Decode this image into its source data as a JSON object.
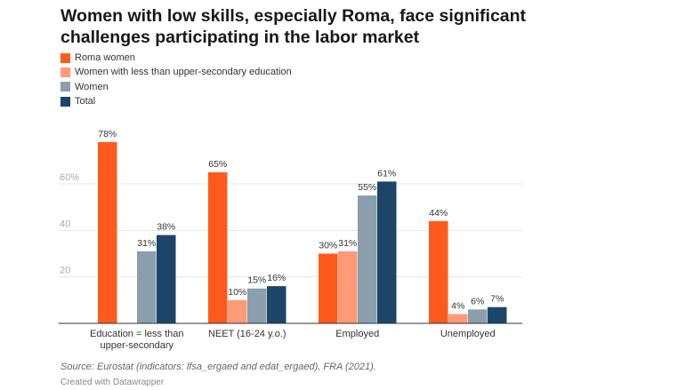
{
  "title": "Women with low skills, especially Roma, face significant challenges participating in the labor market",
  "source": "Source: Eurostat (indicators: lfsa_ergaed and edat_ergaed), FRA (2021).",
  "credit": "Created with Datawrapper",
  "chart_data": {
    "type": "bar",
    "title": "Women with low skills, especially Roma, face significant challenges participating in the labor market",
    "categories": [
      "Education = less than upper-secondary",
      "NEET (16-24 y.o.)",
      "Employed",
      "Unemployed"
    ],
    "series": [
      {
        "name": "Roma women",
        "color": "#fe5a1d",
        "values": [
          78,
          65,
          30,
          44
        ]
      },
      {
        "name": "Women with less than upper-secondary education",
        "color": "#fe9a78",
        "values": [
          null,
          10,
          31,
          4
        ]
      },
      {
        "name": "Women",
        "color": "#8a9eae",
        "values": [
          31,
          15,
          55,
          6
        ]
      },
      {
        "name": "Total",
        "color": "#1d4567",
        "values": [
          38,
          16,
          61,
          7
        ]
      }
    ],
    "yticks": [
      "20",
      "40",
      "60%"
    ],
    "ytick_values": [
      20,
      40,
      60
    ],
    "ylim": [
      0,
      80
    ],
    "grid": true,
    "legend": "top-left",
    "value_suffix": "%"
  }
}
